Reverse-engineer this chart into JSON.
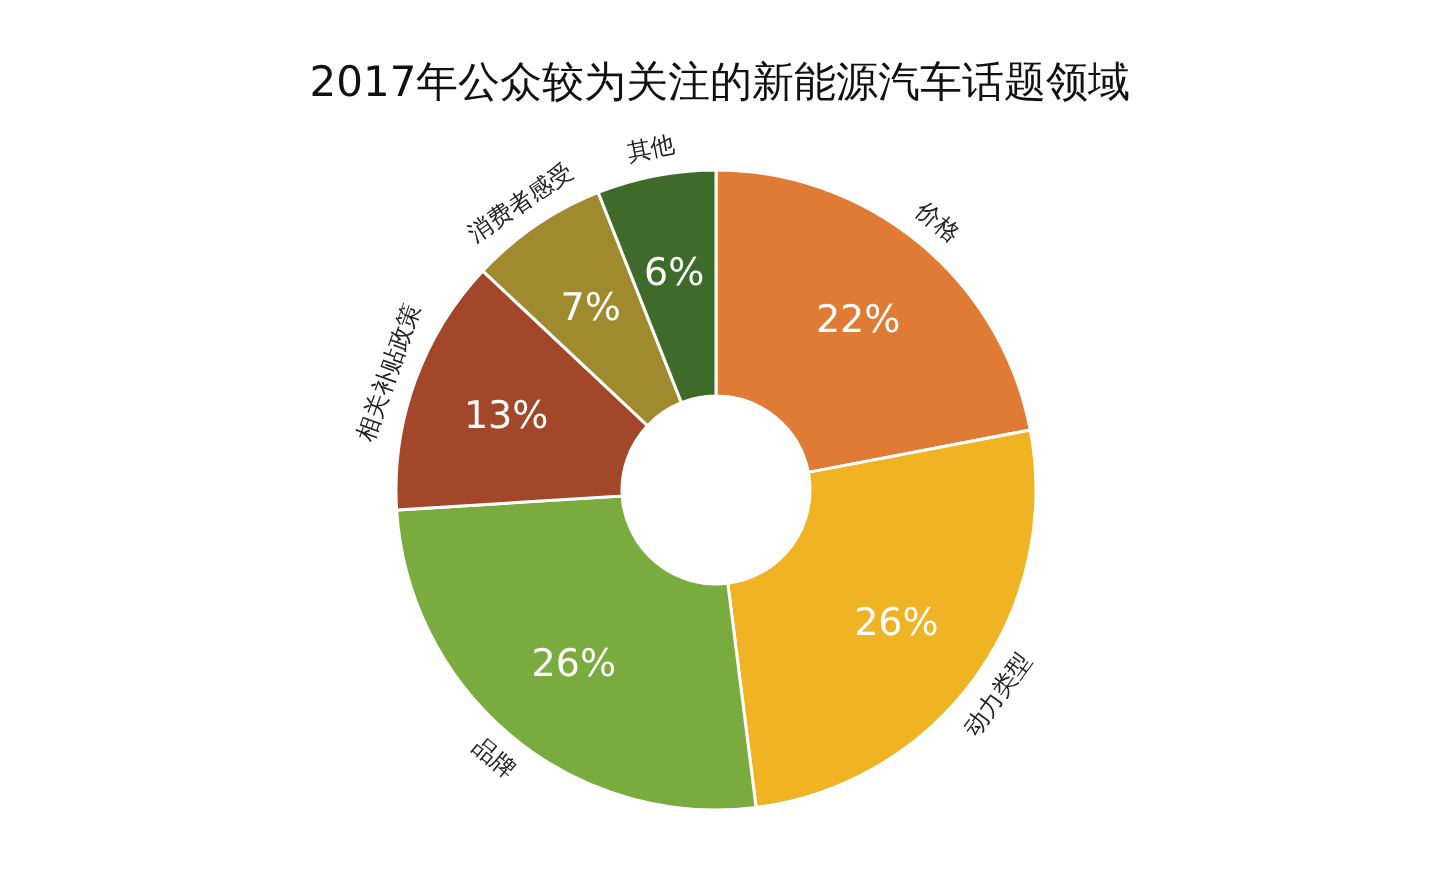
{
  "chart_data": {
    "type": "donut",
    "title": "2017年公众较为关注的新能源汽车话题领域",
    "categories": [
      "价格",
      "动力类型",
      "品牌",
      "相关补贴政策",
      "消费者感受",
      "其他"
    ],
    "values": [
      22,
      26,
      26,
      13,
      7,
      6
    ],
    "colors": [
      "#e07b35",
      "#f0b323",
      "#7aab3e",
      "#a3472a",
      "#a08a2e",
      "#3f6b2a"
    ],
    "value_labels": [
      "22%",
      "26%",
      "26%",
      "13%",
      "7%",
      "6%"
    ]
  }
}
